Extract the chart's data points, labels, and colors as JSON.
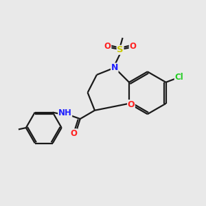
{
  "background_color": "#e9e9e9",
  "bond_color": "#1a1a1a",
  "atom_colors": {
    "N": "#2020ff",
    "O": "#ff2020",
    "S": "#c8c800",
    "Cl": "#22cc22",
    "C": "#1a1a1a"
  },
  "figsize": [
    3.0,
    3.0
  ],
  "dpi": 100,
  "lw": 1.6
}
